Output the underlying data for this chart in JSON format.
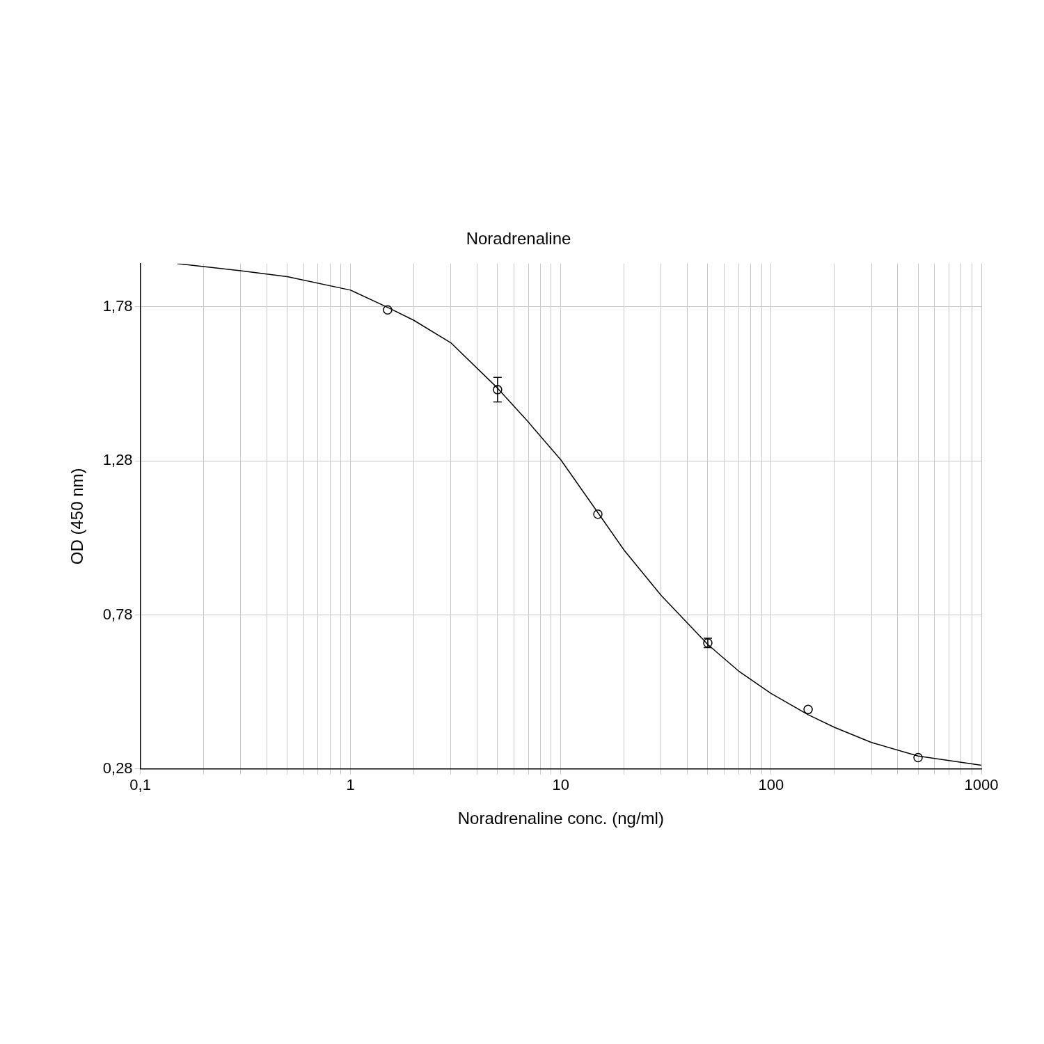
{
  "chart_data": {
    "type": "scatter",
    "title": "Noradrenaline",
    "xlabel": "Noradrenaline conc. (ng/ml)",
    "ylabel": "OD (450 nm)",
    "log": "x",
    "grid": true,
    "legend": false,
    "xlim": [
      0.1,
      1000
    ],
    "ylim": [
      0.28,
      1.92
    ],
    "xticks": [
      {
        "value": 0.1,
        "label": "0,1"
      },
      {
        "value": 0.2,
        "label": null
      },
      {
        "value": 0.3,
        "label": null
      },
      {
        "value": 0.4,
        "label": null
      },
      {
        "value": 0.5,
        "label": null
      },
      {
        "value": 0.6,
        "label": null
      },
      {
        "value": 0.7,
        "label": null
      },
      {
        "value": 0.8,
        "label": null
      },
      {
        "value": 0.9,
        "label": null
      },
      1,
      {
        "value": 2,
        "label": null
      },
      {
        "value": 3,
        "label": null
      },
      {
        "value": 4,
        "label": null
      },
      {
        "value": 5,
        "label": null
      },
      {
        "value": 6,
        "label": null
      },
      {
        "value": 7,
        "label": null
      },
      {
        "value": 8,
        "label": null
      },
      {
        "value": 9,
        "label": null
      },
      10,
      {
        "value": 20,
        "label": null
      },
      {
        "value": 30,
        "label": null
      },
      {
        "value": 40,
        "label": null
      },
      {
        "value": 50,
        "label": null
      },
      {
        "value": 60,
        "label": null
      },
      {
        "value": 70,
        "label": null
      },
      {
        "value": 80,
        "label": null
      },
      {
        "value": 90,
        "label": null
      },
      100,
      {
        "value": 200,
        "label": null
      },
      {
        "value": 300,
        "label": null
      },
      {
        "value": 400,
        "label": null
      },
      {
        "value": 500,
        "label": null
      },
      {
        "value": 600,
        "label": null
      },
      {
        "value": 700,
        "label": null
      },
      {
        "value": 800,
        "label": null
      },
      {
        "value": 900,
        "label": null
      },
      1000
    ],
    "yticks": [
      {
        "value": 0.28,
        "label": "0,28"
      },
      {
        "value": 0.78,
        "label": "0,78"
      },
      {
        "value": 1.28,
        "label": "1,28"
      },
      {
        "value": 1.78,
        "label": "1,78"
      }
    ],
    "series": [
      {
        "type": "line",
        "color": "#000000",
        "marker": "none",
        "line_style": "solid",
        "x": [
          0.15,
          0.3,
          0.5,
          1,
          1.5,
          2,
          3,
          5,
          7,
          10,
          15,
          20,
          30,
          50,
          70,
          100,
          150,
          200,
          300,
          500,
          1000
        ],
        "values": [
          1.92,
          1.897,
          1.878,
          1.834,
          1.778,
          1.736,
          1.663,
          1.516,
          1.406,
          1.283,
          1.112,
          0.99,
          0.843,
          0.684,
          0.598,
          0.525,
          0.456,
          0.415,
          0.366,
          0.322,
          0.292
        ]
      },
      {
        "color": "#000000",
        "marker": "circle",
        "x": [
          1.5,
          5,
          15,
          50,
          150,
          500
        ],
        "values": [
          1.77,
          1.511,
          1.107,
          0.689,
          0.473,
          0.317
        ],
        "errors": [
          null,
          0.04,
          null,
          0.015,
          null,
          null
        ]
      }
    ]
  }
}
